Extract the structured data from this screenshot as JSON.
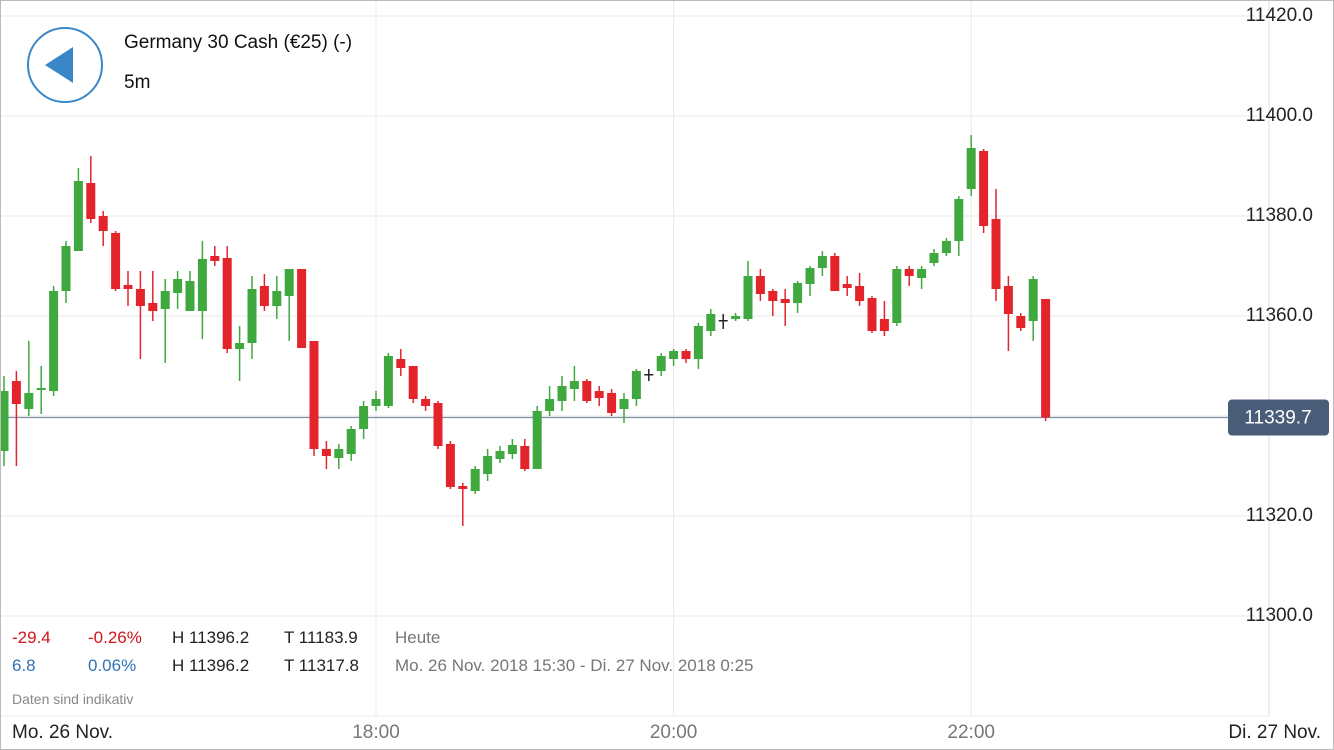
{
  "header": {
    "title": "Germany 30 Cash (€25) (-)",
    "interval": "5m"
  },
  "chart_data": {
    "type": "candlestick",
    "categories": [
      "15:30",
      "15:35",
      "15:40",
      "15:45",
      "15:50",
      "15:55",
      "16:00",
      "16:05",
      "16:10",
      "16:15",
      "16:20",
      "16:25",
      "16:30",
      "16:35",
      "16:40",
      "16:45",
      "16:50",
      "16:55",
      "17:00",
      "17:05",
      "17:10",
      "17:15",
      "17:20",
      "17:25",
      "17:30",
      "17:35",
      "17:40",
      "17:45",
      "17:50",
      "17:55",
      "18:00",
      "18:05",
      "18:10",
      "18:15",
      "18:20",
      "18:25",
      "18:30",
      "18:35",
      "18:40",
      "18:45",
      "18:50",
      "18:55",
      "19:00",
      "19:05",
      "19:10",
      "19:15",
      "19:20",
      "19:25",
      "19:30",
      "19:35",
      "19:40",
      "19:45",
      "19:50",
      "19:55",
      "20:00",
      "20:05",
      "20:10",
      "20:15",
      "20:20",
      "20:25",
      "20:30",
      "20:35",
      "20:40",
      "20:45",
      "20:50",
      "20:55",
      "21:00",
      "21:05",
      "21:10",
      "21:15",
      "21:20",
      "21:25",
      "21:30",
      "21:35",
      "21:40",
      "21:45",
      "21:50",
      "21:55",
      "22:00",
      "22:05",
      "22:10",
      "22:15",
      "22:20",
      "22:25",
      "22:30"
    ],
    "open": [
      11333,
      11347,
      11341.4,
      11345.2,
      11345,
      11365,
      11373,
      11386.6,
      11380,
      11376.6,
      11366.2,
      11365.4,
      11362.6,
      11361.4,
      11364.6,
      11361,
      11361,
      11372,
      11371.6,
      11353.4,
      11354.6,
      11366,
      11362,
      11364,
      11369.4,
      11355,
      11333.4,
      11331.6,
      11332.4,
      11337.4,
      11342,
      11342,
      11351.4,
      11350,
      11343.4,
      11342.6,
      11334.4,
      11326,
      11325,
      11328.4,
      11331.4,
      11332.4,
      11334,
      11329.4,
      11341,
      11343,
      11345.4,
      11347,
      11345,
      11344.6,
      11341.4,
      11343.4,
      11348.4,
      11349,
      11351.4,
      11353,
      11351.4,
      11357,
      11359.2,
      11359.4,
      11359.4,
      11368,
      11365,
      11363.4,
      11362.6,
      11366.4,
      11369.6,
      11372,
      11366.4,
      11366,
      11363.6,
      11359.4,
      11358.6,
      11369.4,
      11367.6,
      11370.6,
      11372.6,
      11375,
      11385.4,
      11393,
      11379.4,
      11366,
      11360,
      11359,
      11363.4
    ],
    "high": [
      11348,
      11349,
      11355,
      11350,
      11366,
      11375,
      11389.6,
      11392,
      11381,
      11377,
      11369,
      11369,
      11369,
      11367.4,
      11369,
      11369,
      11375,
      11374,
      11374,
      11358,
      11368,
      11368.4,
      11368,
      11369.4,
      11369.4,
      11355,
      11335,
      11334.4,
      11338,
      11343,
      11345,
      11352.6,
      11353.4,
      11350,
      11344,
      11343,
      11335,
      11326.6,
      11330,
      11333.4,
      11334,
      11335.4,
      11335.4,
      11342,
      11346,
      11348,
      11350,
      11347.4,
      11346,
      11345.4,
      11344.6,
      11349.4,
      11349.4,
      11352.6,
      11353.4,
      11353.4,
      11358.6,
      11361.4,
      11360.4,
      11360.6,
      11371,
      11369.4,
      11365.4,
      11365.4,
      11367,
      11370,
      11373,
      11372.6,
      11368,
      11368.6,
      11364,
      11363,
      11370,
      11370,
      11370,
      11373.4,
      11375.6,
      11384,
      11396.2,
      11393.4,
      11385.4,
      11368,
      11360.6,
      11368,
      11363.4
    ],
    "low": [
      11330,
      11330,
      11340,
      11340.4,
      11344,
      11362.6,
      11373,
      11378.6,
      11374,
      11365,
      11362,
      11351.4,
      11359,
      11350.6,
      11361.4,
      11361.4,
      11355.4,
      11370,
      11352.6,
      11347,
      11351.4,
      11361,
      11359.4,
      11355,
      11353.6,
      11332,
      11329.4,
      11329.4,
      11331,
      11335.4,
      11341,
      11341.6,
      11348,
      11342.6,
      11341,
      11333.4,
      11325.4,
      11318,
      11324.4,
      11327,
      11330.6,
      11331.4,
      11329,
      11329.4,
      11340,
      11341,
      11343,
      11342.6,
      11342,
      11340,
      11338.6,
      11342,
      11347,
      11348,
      11350,
      11350.6,
      11349.4,
      11356,
      11357.4,
      11359,
      11359,
      11363,
      11360,
      11358,
      11360.6,
      11364,
      11368,
      11365,
      11364,
      11362,
      11356.6,
      11356,
      11358,
      11366,
      11365.4,
      11370,
      11372,
      11372,
      11384,
      11376.6,
      11363,
      11353,
      11357,
      11355,
      11339
    ],
    "close": [
      11345,
      11342.4,
      11344.6,
      11345.6,
      11365,
      11374,
      11387,
      11379.4,
      11377,
      11365.4,
      11365.4,
      11362,
      11361,
      11365,
      11367.4,
      11367,
      11371.4,
      11371,
      11353.4,
      11354.6,
      11365.4,
      11362,
      11365,
      11369.4,
      11353.6,
      11333.4,
      11332,
      11333.4,
      11337.4,
      11342,
      11343.4,
      11352,
      11349.6,
      11343.4,
      11342,
      11334,
      11325.8,
      11325.4,
      11329.4,
      11332,
      11333,
      11334.2,
      11329.4,
      11341,
      11343.4,
      11346,
      11347,
      11343,
      11343.6,
      11340.6,
      11343.4,
      11349,
      11348.4,
      11352,
      11353,
      11351.4,
      11358,
      11360.4,
      11359.2,
      11360,
      11368,
      11364.4,
      11363,
      11362.6,
      11366.6,
      11369.6,
      11372,
      11365,
      11365.6,
      11363,
      11357,
      11357,
      11369.4,
      11368,
      11369.4,
      11372.6,
      11375,
      11383.4,
      11393.6,
      11378,
      11365.4,
      11360.4,
      11357.6,
      11367.4,
      11339.7
    ],
    "up_color": "#3fa83f",
    "down_color": "#e3242b",
    "flat_color": "#222222",
    "ylim": [
      11280,
      11423
    ],
    "yticks": [
      {
        "value": 11300,
        "label": "11300.0"
      },
      {
        "value": 11320,
        "label": "11320.0"
      },
      {
        "value": 11340,
        "label": "11340.0"
      },
      {
        "value": 11360,
        "label": "11360.0"
      },
      {
        "value": 11380,
        "label": "11380.0"
      },
      {
        "value": 11400,
        "label": "11400.0"
      },
      {
        "value": 11420,
        "label": "11420.0"
      }
    ],
    "xticks": [
      "18:00",
      "20:00",
      "22:00"
    ],
    "last_price": 11339.7,
    "start_label": "Mo. 26 Nov.",
    "end_label": "Di. 27 Nov.",
    "grid": true
  },
  "stats": [
    {
      "change": "-29.4",
      "change_pct": "-0.26%",
      "high": "H 11396.2",
      "low": "T 11183.9",
      "period": "Heute"
    },
    {
      "change": "6.8",
      "change_pct": "0.06%",
      "high": "H 11396.2",
      "low": "T 11317.8",
      "period": "Mo. 26 Nov. 2018 15:30 - Di. 27 Nov. 2018 0:25"
    }
  ],
  "disclaimer": "Daten sind indikativ"
}
